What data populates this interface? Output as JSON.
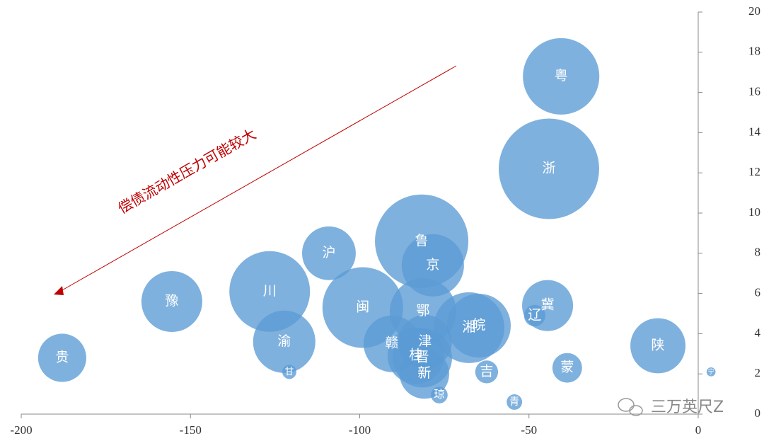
{
  "chart_data": {
    "type": "bubble",
    "labels": [
      "贵",
      "豫",
      "川",
      "渝",
      "甘",
      "沪",
      "闽",
      "赣",
      "鲁",
      "京",
      "鄂",
      "津",
      "桂",
      "晋",
      "新",
      "琼",
      "湘",
      "皖",
      "吉",
      "青",
      "辽",
      "冀",
      "粤",
      "浙",
      "蒙",
      "陕",
      "宁"
    ],
    "x": [
      -187.9,
      -155.5,
      -126.6,
      -122.3,
      -120.8,
      -109.1,
      -99.1,
      -90.5,
      -81.7,
      -78.4,
      -81.3,
      -80.7,
      -83.4,
      -81.5,
      -80.9,
      -76.5,
      -67.7,
      -64.8,
      -62.5,
      -54.3,
      -48.3,
      -44.5,
      -40.5,
      -44.1,
      -38.7,
      -11.9,
      3.8
    ],
    "values": [
      2.8,
      5.6,
      6.1,
      3.6,
      2.1,
      8.0,
      5.3,
      3.5,
      8.6,
      7.4,
      5.1,
      3.6,
      2.9,
      2.8,
      2.0,
      0.95,
      4.3,
      4.4,
      2.1,
      0.6,
      4.9,
      5.4,
      16.8,
      12.2,
      2.3,
      3.4,
      2.1
    ],
    "sizes": [
      11.6,
      18.5,
      32.5,
      19.4,
      1.0,
      14.4,
      32.5,
      16.0,
      43.6,
      19.4,
      22.1,
      14.4,
      16.0,
      17.6,
      12.3,
      1.4,
      25.0,
      20.3,
      2.6,
      1.2,
      2.3,
      13.0,
      29.2,
      50.4,
      4.4,
      15.2,
      0.4
    ],
    "color": "#5b9bd5",
    "xlim": [
      -200,
      0
    ],
    "ylim": [
      0,
      20
    ],
    "xticks": [
      -200,
      -150,
      -100,
      -50,
      0
    ],
    "yticks": [
      0,
      2,
      4,
      6,
      8,
      10,
      12,
      14,
      16,
      18,
      20
    ],
    "annotation": "偿债流动性压力可能较大",
    "watermark": "三万英尺Z"
  }
}
